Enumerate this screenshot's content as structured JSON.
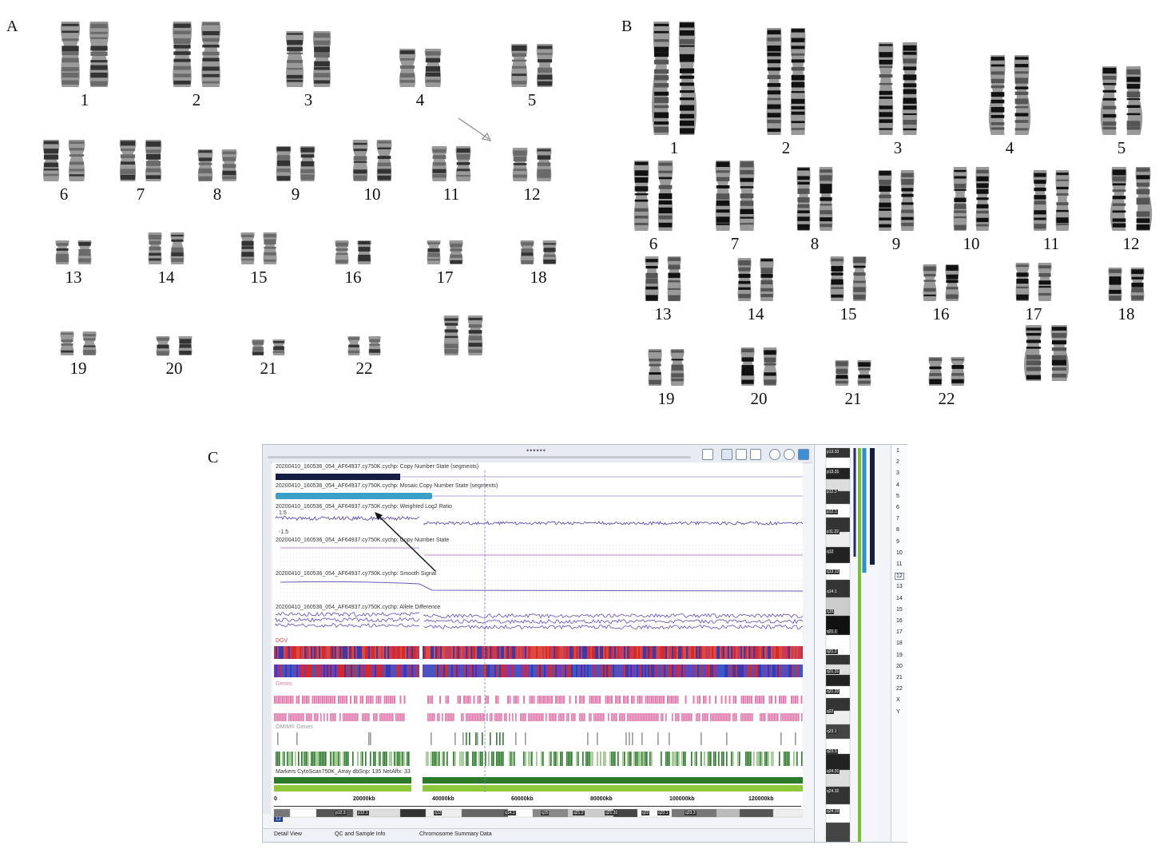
{
  "panels": {
    "a": {
      "letter": "A",
      "labels": [
        "1",
        "2",
        "3",
        "4",
        "5",
        "6",
        "7",
        "8",
        "9",
        "10",
        "11",
        "12",
        "13",
        "14",
        "15",
        "16",
        "17",
        "18",
        "19",
        "20",
        "21",
        "22"
      ]
    },
    "b": {
      "letter": "B",
      "labels": [
        "1",
        "2",
        "3",
        "4",
        "5",
        "6",
        "7",
        "8",
        "9",
        "10",
        "11",
        "12",
        "13",
        "14",
        "15",
        "16",
        "17",
        "18",
        "19",
        "20",
        "21",
        "22"
      ]
    },
    "c": {
      "letter": "C"
    }
  },
  "software": {
    "toolbar_dots": "••••••",
    "tracks": {
      "cn_segments": "20200410_160536_054_AF64937.cy750K.cychp: Copy Number State (segments)",
      "mosaic": "20200410_160536_054_AF64937.cy750K.cychp: Mosaic Copy Number State (segments)",
      "log2": "20200410_160536_054_AF64937.cy750K.cychp: Weighted Log2 Ratio",
      "log2_top": "1.5",
      "log2_bottom": "-1.5",
      "cn_state": "20200410_160536_054_AF64937.cy750K.cychp: Copy Number State",
      "smooth": "20200410_160536_054_AF64937.cy750K.cychp: Smooth Signal",
      "allele": "20200410_160536_054_AF64937.cy750K.cychp: Allele Difference",
      "dgv": "DGV",
      "genes": "Genes",
      "omim": "OMIM® Genes",
      "markers": "Markers CytoScan750K_Array dbSnp: 135 NetAffx: 33"
    },
    "axis": [
      "0",
      "20000kb",
      "40000kb",
      "60000kb",
      "80000kb",
      "100000kb",
      "120000kb"
    ],
    "chromosome_badge": "12",
    "bottom_bands": [
      "p12.3",
      "p12.1",
      "q12",
      "q14.1",
      "q15",
      "q21.2",
      "q21.31",
      "q22",
      "q23.1",
      "q23.3"
    ],
    "side_bands": [
      "p13.33",
      "p13.31",
      "p12.3",
      "p12.1",
      "p11.22",
      "q12",
      "q13.13",
      "q14.1",
      "q15",
      "q21.1",
      "q21.2",
      "q21.31",
      "q21.33",
      "q22",
      "q23.1",
      "q23.3",
      "q24.31",
      "q24.32",
      "q24.33"
    ],
    "tabs": [
      "Detail View",
      "QC and Sample Info",
      "Chromosome Summary Data"
    ],
    "chrom_list": [
      "1",
      "2",
      "3",
      "4",
      "5",
      "6",
      "7",
      "8",
      "9",
      "10",
      "11",
      "12",
      "13",
      "14",
      "15",
      "16",
      "17",
      "18",
      "19",
      "20",
      "21",
      "22",
      "X",
      "Y"
    ],
    "selected_chrom": "12"
  }
}
